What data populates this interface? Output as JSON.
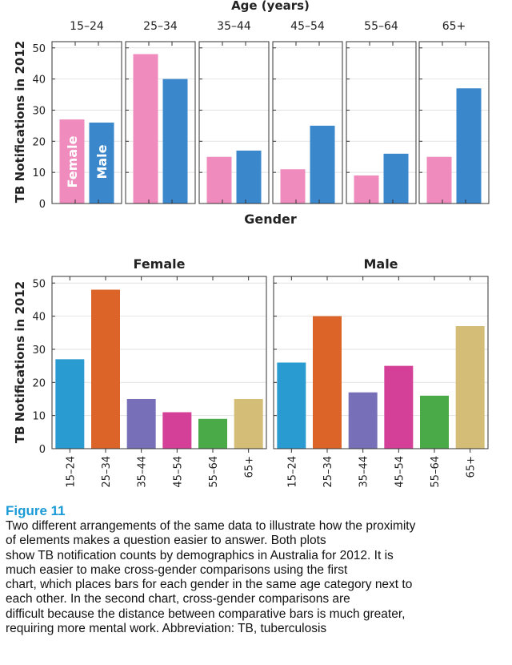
{
  "chart_data": [
    {
      "type": "bar",
      "title": "Age (years)",
      "xlabel": "Gender",
      "ylabel": "TB Notifications in 2012",
      "ylim": [
        0,
        52
      ],
      "yticks": [
        0,
        10,
        20,
        30,
        40,
        50
      ],
      "panels": [
        "15–24",
        "25–34",
        "35–44",
        "45–54",
        "55–64",
        "65+"
      ],
      "series": [
        {
          "name": "Female",
          "color": "#f08bbd",
          "values": [
            27,
            48,
            15,
            11,
            9,
            15
          ]
        },
        {
          "name": "Male",
          "color": "#3a87cb",
          "values": [
            26,
            40,
            17,
            25,
            16,
            37
          ]
        }
      ],
      "grid": true
    },
    {
      "type": "bar",
      "ylabel": "TB Notifications in 2012",
      "ylim": [
        0,
        52
      ],
      "yticks": [
        0,
        10,
        20,
        30,
        40,
        50
      ],
      "panels": [
        "Female",
        "Male"
      ],
      "categories": [
        "15–24",
        "25–34",
        "35–44",
        "45–54",
        "55–64",
        "65+"
      ],
      "colors": [
        "#2a9bd0",
        "#dd6428",
        "#7770b8",
        "#d43f98",
        "#4aaa48",
        "#d4bd77"
      ],
      "series": [
        {
          "name": "Female",
          "values": [
            27,
            48,
            15,
            11,
            9,
            15
          ]
        },
        {
          "name": "Male",
          "values": [
            26,
            40,
            17,
            25,
            16,
            37
          ]
        }
      ],
      "grid": true
    }
  ],
  "caption": {
    "label": "Figure 11",
    "lines": [
      "Two different arrangements of the same data to illustrate how the proximity",
      "of elements makes a question easier to answer. Both plots",
      "show TB notification counts by demographics in Australia for 2012. It is",
      "much easier to make cross-gender comparisons using the first",
      "chart, which places bars for each gender in the same age category next to",
      "each other. In the second chart, cross-gender comparisons are",
      "difficult because the distance between comparative bars is much greater,",
      "requiring more mental work. Abbreviation: TB, tuberculosis"
    ]
  }
}
